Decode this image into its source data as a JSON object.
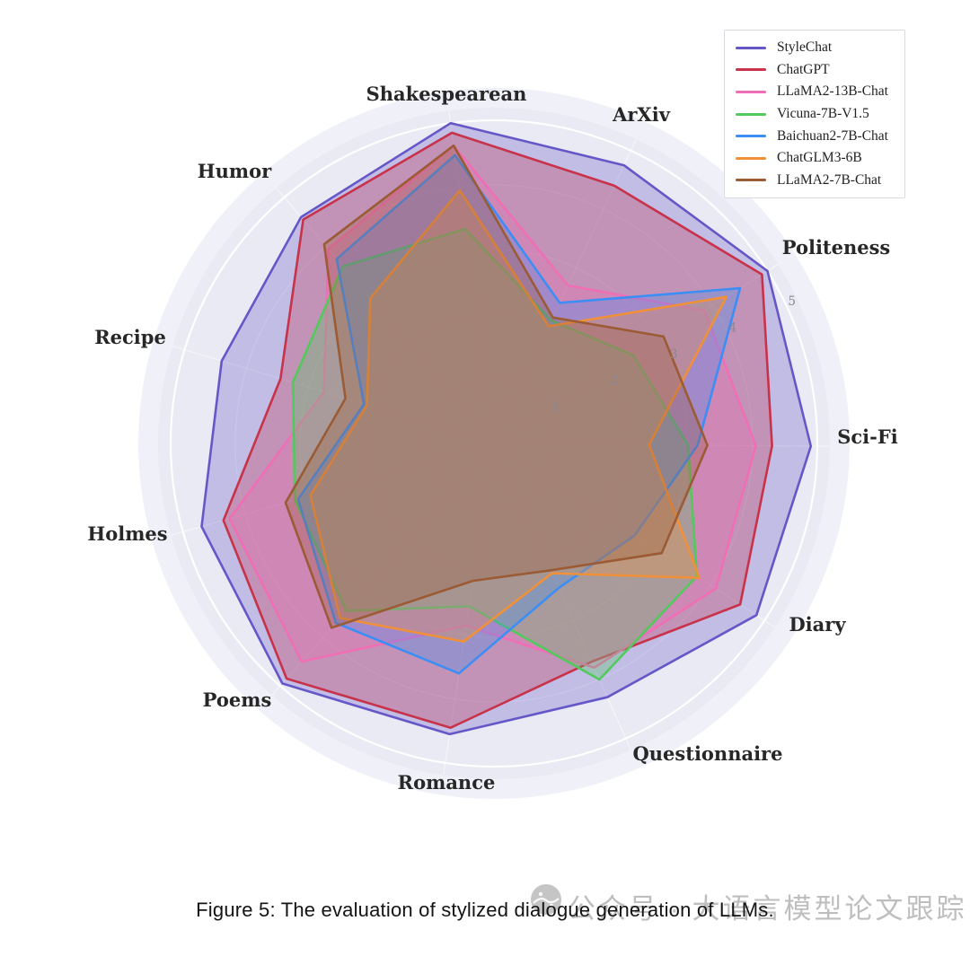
{
  "figure": {
    "caption": "Figure 5: The evaluation of stylized dialogue generation of LLMs.",
    "watermark_text": "公众号 · 大语言模型论文跟踪",
    "watermark_icon": "wechat-logo-icon"
  },
  "chart_data": {
    "type": "radar",
    "title": "",
    "categories": [
      "Shakespearean",
      "ArXiv",
      "Politeness",
      "Sci-Fi",
      "Diary",
      "Questionnaire",
      "Romance",
      "Poems",
      "Holmes",
      "Recipe",
      "Humor"
    ],
    "radial_ticks": [
      "1",
      "2",
      "3",
      "4",
      "5"
    ],
    "range": [
      0,
      5
    ],
    "rotation_deg": 97.7,
    "grid_on": true,
    "legend_position": "top-right",
    "background_color": "#e9eaf3",
    "outer_band_color": "#f0f1f8",
    "grid_color": "#ffffff",
    "tick_label_color": "#8b8692",
    "category_label_color": "#272727",
    "fill_opacity": 0.3,
    "series": [
      {
        "name": "StyleChat",
        "color": "#6657c8",
        "values": [
          5.0,
          4.75,
          5.0,
          4.9,
          4.85,
          4.3,
          4.55,
          4.95,
          4.7,
          4.4,
          4.6
        ]
      },
      {
        "name": "ChatGPT",
        "color": "#c8324a",
        "values": [
          4.85,
          4.4,
          4.9,
          4.3,
          4.55,
          3.7,
          4.45,
          4.85,
          4.35,
          3.45,
          4.55
        ]
      },
      {
        "name": "LLaMA2-13B-Chat",
        "color": "#f06eb6",
        "values": [
          4.65,
          2.7,
          3.85,
          4.05,
          4.1,
          3.8,
          2.85,
          4.5,
          4.25,
          2.75,
          3.95
        ]
      },
      {
        "name": "Vicuna-7B-V1.5",
        "color": "#52c95c",
        "values": [
          3.35,
          2.1,
          2.55,
          3.0,
          3.75,
          4.0,
          2.55,
          3.45,
          3.2,
          3.25,
          3.6
        ]
      },
      {
        "name": "Baichuan2-7B-Chat",
        "color": "#3c8ef5",
        "values": [
          4.5,
          2.4,
          4.5,
          3.15,
          2.6,
          2.45,
          3.6,
          3.7,
          3.15,
          2.1,
          3.75
        ]
      },
      {
        "name": "ChatGLM3-6B",
        "color": "#f0913a",
        "values": [
          3.95,
          2.0,
          4.25,
          2.4,
          3.8,
          2.2,
          3.1,
          3.6,
          2.95,
          2.05,
          2.95
        ]
      },
      {
        "name": "LLaMA2-7B-Chat",
        "color": "#9a5b35",
        "values": [
          4.65,
          2.15,
          3.1,
          3.3,
          3.1,
          2.15,
          2.15,
          3.8,
          3.35,
          2.4,
          4.05
        ]
      }
    ]
  }
}
